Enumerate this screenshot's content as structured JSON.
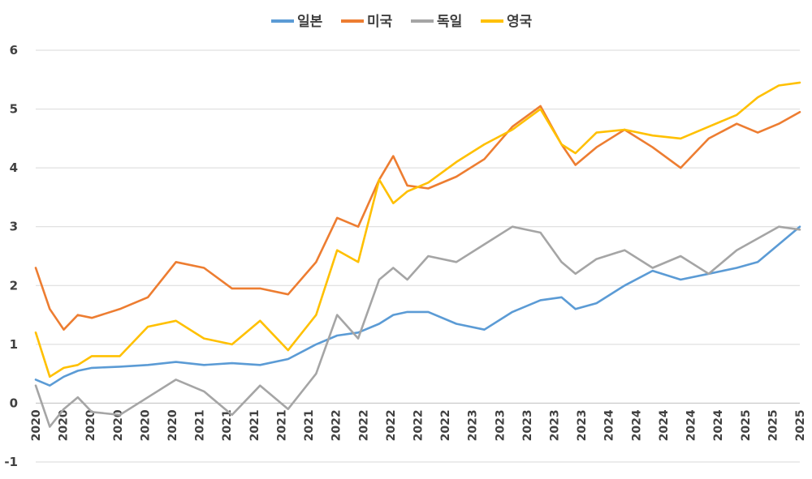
{
  "chart_data": {
    "type": "line",
    "title": "",
    "xlabel": "",
    "ylabel": "",
    "ylim": [
      -1,
      6
    ],
    "yticks": [
      -1,
      0,
      1,
      2,
      3,
      4,
      5,
      6
    ],
    "grid": "horizontal",
    "legend_position": "top",
    "x_tick_labels": [
      "2020",
      "2020",
      "2020",
      "2020",
      "2020",
      "2020",
      "2021",
      "2021",
      "2021",
      "2021",
      "2021",
      "2022",
      "2022",
      "2022",
      "2022",
      "2022",
      "2023",
      "2023",
      "2023",
      "2023",
      "2023",
      "2024",
      "2024",
      "2024",
      "2024",
      "2024",
      "2025",
      "2025",
      "2025"
    ],
    "x": [
      2020.0,
      2020.1,
      2020.2,
      2020.3,
      2020.4,
      2020.6,
      2020.8,
      2021.0,
      2021.2,
      2021.4,
      2021.6,
      2021.8,
      2022.0,
      2022.15,
      2022.3,
      2022.45,
      2022.55,
      2022.65,
      2022.8,
      2023.0,
      2023.2,
      2023.4,
      2023.6,
      2023.75,
      2023.85,
      2024.0,
      2024.2,
      2024.4,
      2024.6,
      2024.8,
      2025.0,
      2025.15,
      2025.3,
      2025.45
    ],
    "series": [
      {
        "name": "일본",
        "color": "#5b9bd5",
        "values": [
          0.4,
          0.3,
          0.45,
          0.55,
          0.6,
          0.62,
          0.65,
          0.7,
          0.65,
          0.68,
          0.65,
          0.75,
          1.0,
          1.15,
          1.2,
          1.35,
          1.5,
          1.55,
          1.55,
          1.35,
          1.25,
          1.55,
          1.75,
          1.8,
          1.6,
          1.7,
          2.0,
          2.25,
          2.1,
          2.2,
          2.3,
          2.4,
          2.7,
          3.0
        ]
      },
      {
        "name": "미국",
        "color": "#ed7d31",
        "values": [
          2.3,
          1.6,
          1.25,
          1.5,
          1.45,
          1.6,
          1.8,
          2.4,
          2.3,
          1.95,
          1.95,
          1.85,
          2.4,
          3.15,
          3.0,
          3.8,
          4.2,
          3.7,
          3.65,
          3.85,
          4.15,
          4.7,
          5.05,
          4.4,
          4.05,
          4.35,
          4.65,
          4.35,
          4.0,
          4.5,
          4.75,
          4.6,
          4.75,
          4.95
        ]
      },
      {
        "name": "독일",
        "color": "#a5a5a5",
        "values": [
          0.3,
          -0.4,
          -0.1,
          0.1,
          -0.15,
          -0.2,
          0.1,
          0.4,
          0.2,
          -0.2,
          0.3,
          -0.1,
          0.5,
          1.5,
          1.1,
          2.1,
          2.3,
          2.1,
          2.5,
          2.4,
          2.7,
          3.0,
          2.9,
          2.4,
          2.2,
          2.45,
          2.6,
          2.3,
          2.5,
          2.2,
          2.6,
          2.8,
          3.0,
          2.95
        ]
      },
      {
        "name": "영국",
        "color": "#ffc000",
        "values": [
          1.2,
          0.45,
          0.6,
          0.65,
          0.8,
          0.8,
          1.3,
          1.4,
          1.1,
          1.0,
          1.4,
          0.9,
          1.5,
          2.6,
          2.4,
          3.8,
          3.4,
          3.6,
          3.75,
          4.1,
          4.4,
          4.65,
          5.0,
          4.4,
          4.25,
          4.6,
          4.65,
          4.55,
          4.5,
          4.7,
          4.9,
          5.2,
          5.4,
          5.45
        ]
      }
    ]
  }
}
